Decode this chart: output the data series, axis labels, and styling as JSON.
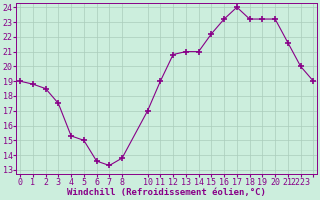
{
  "x": [
    0,
    1,
    2,
    3,
    4,
    5,
    6,
    7,
    8,
    10,
    11,
    12,
    13,
    14,
    15,
    16,
    17,
    18,
    19,
    20,
    21,
    22,
    23
  ],
  "y": [
    19.0,
    18.8,
    18.5,
    17.5,
    15.3,
    15.0,
    13.6,
    13.3,
    13.8,
    17.0,
    19.0,
    20.8,
    21.0,
    21.0,
    22.2,
    23.2,
    24.0,
    23.2,
    23.2,
    23.2,
    21.6,
    20.0,
    19.0
  ],
  "line_color": "#880088",
  "marker": "+",
  "marker_size": 4,
  "marker_lw": 1.2,
  "bg_color": "#cceedd",
  "grid_color": "#aaccbb",
  "xlabel": "Windchill (Refroidissement éolien,°C)",
  "xlabel_fontsize": 6.5,
  "tick_fontsize": 6.0,
  "ylim": [
    13,
    24
  ],
  "yticks": [
    13,
    14,
    15,
    16,
    17,
    18,
    19,
    20,
    21,
    22,
    23,
    24
  ],
  "xtick_labels": [
    "0",
    "1",
    "2",
    "3",
    "4",
    "5",
    "6",
    "7",
    "8",
    "",
    "10",
    "11",
    "12",
    "13",
    "14",
    "15",
    "16",
    "17",
    "18",
    "19",
    "20",
    "21",
    "2223"
  ],
  "xtick_positions": [
    0,
    1,
    2,
    3,
    4,
    5,
    6,
    7,
    8,
    9,
    10,
    11,
    12,
    13,
    14,
    15,
    16,
    17,
    18,
    19,
    20,
    21,
    22
  ],
  "xlim": [
    0,
    23
  ]
}
